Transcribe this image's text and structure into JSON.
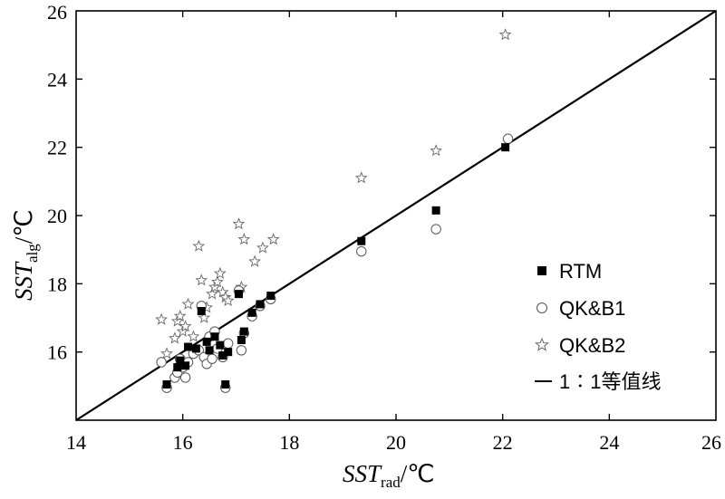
{
  "chart_data": {
    "type": "scatter",
    "xlabel": {
      "main": "SST",
      "sub": "rad",
      "unit": "/℃"
    },
    "ylabel": {
      "main": "SST",
      "sub": "alg",
      "unit": "/℃"
    },
    "xlim": [
      14,
      26
    ],
    "ylim": [
      14,
      26
    ],
    "xticks": [
      "14",
      "16",
      "18",
      "20",
      "22",
      "24",
      "26"
    ],
    "yticks": [
      "16",
      "18",
      "20",
      "22",
      "24",
      "26"
    ],
    "grid": false,
    "legend_position": "bottom-right",
    "series": [
      {
        "name": "RTM",
        "marker": "square-filled",
        "points": [
          [
            15.7,
            15.05
          ],
          [
            15.9,
            15.55
          ],
          [
            15.95,
            15.75
          ],
          [
            16.05,
            15.6
          ],
          [
            16.1,
            16.15
          ],
          [
            16.25,
            16.1
          ],
          [
            16.35,
            17.2
          ],
          [
            16.45,
            16.3
          ],
          [
            16.5,
            16.05
          ],
          [
            16.6,
            16.45
          ],
          [
            16.7,
            16.2
          ],
          [
            16.75,
            15.9
          ],
          [
            16.8,
            15.05
          ],
          [
            16.85,
            16.0
          ],
          [
            17.05,
            17.7
          ],
          [
            17.1,
            16.35
          ],
          [
            17.15,
            16.6
          ],
          [
            17.3,
            17.15
          ],
          [
            17.45,
            17.4
          ],
          [
            17.65,
            17.65
          ],
          [
            19.35,
            19.25
          ],
          [
            20.75,
            20.15
          ],
          [
            22.05,
            22.0
          ]
        ]
      },
      {
        "name": "QK&B1",
        "marker": "circle-open",
        "points": [
          [
            15.6,
            15.7
          ],
          [
            15.7,
            14.95
          ],
          [
            15.85,
            15.25
          ],
          [
            15.9,
            15.4
          ],
          [
            15.95,
            15.8
          ],
          [
            16.0,
            15.55
          ],
          [
            16.05,
            15.25
          ],
          [
            16.1,
            15.7
          ],
          [
            16.2,
            15.95
          ],
          [
            16.3,
            16.05
          ],
          [
            16.35,
            17.35
          ],
          [
            16.4,
            15.85
          ],
          [
            16.45,
            15.65
          ],
          [
            16.5,
            16.45
          ],
          [
            16.55,
            15.8
          ],
          [
            16.6,
            16.6
          ],
          [
            16.65,
            16.1
          ],
          [
            16.75,
            15.85
          ],
          [
            16.8,
            14.95
          ],
          [
            16.85,
            16.25
          ],
          [
            17.05,
            17.8
          ],
          [
            17.1,
            16.05
          ],
          [
            17.15,
            16.55
          ],
          [
            17.3,
            17.05
          ],
          [
            17.45,
            17.35
          ],
          [
            17.65,
            17.55
          ],
          [
            19.35,
            18.95
          ],
          [
            20.75,
            19.6
          ],
          [
            22.1,
            22.25
          ]
        ]
      },
      {
        "name": "QK&B2",
        "marker": "star-open",
        "points": [
          [
            15.6,
            16.95
          ],
          [
            15.7,
            15.95
          ],
          [
            15.85,
            16.4
          ],
          [
            15.9,
            16.9
          ],
          [
            15.95,
            17.05
          ],
          [
            16.0,
            16.6
          ],
          [
            16.05,
            16.75
          ],
          [
            16.1,
            17.4
          ],
          [
            16.2,
            16.45
          ],
          [
            16.3,
            19.1
          ],
          [
            16.35,
            18.1
          ],
          [
            16.4,
            17.0
          ],
          [
            16.45,
            17.3
          ],
          [
            16.55,
            17.7
          ],
          [
            16.6,
            17.9
          ],
          [
            16.65,
            18.05
          ],
          [
            16.7,
            18.3
          ],
          [
            16.75,
            17.75
          ],
          [
            16.8,
            17.6
          ],
          [
            16.85,
            17.5
          ],
          [
            17.05,
            19.75
          ],
          [
            17.1,
            17.9
          ],
          [
            17.15,
            19.3
          ],
          [
            17.35,
            18.65
          ],
          [
            17.5,
            19.05
          ],
          [
            17.7,
            19.3
          ],
          [
            19.35,
            21.1
          ],
          [
            20.75,
            21.9
          ],
          [
            22.05,
            25.3
          ]
        ]
      }
    ],
    "reference_line": {
      "name": "1∶1等值线",
      "from": [
        14,
        14
      ],
      "to": [
        26,
        26
      ]
    }
  }
}
